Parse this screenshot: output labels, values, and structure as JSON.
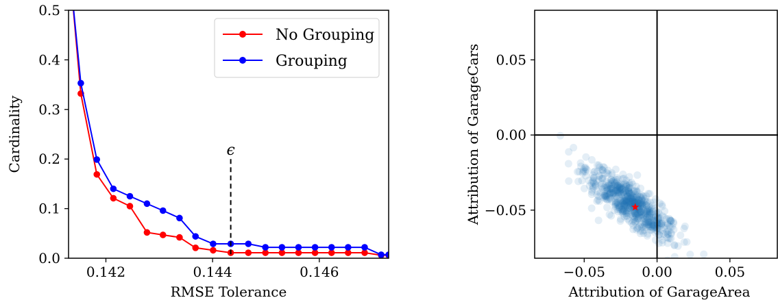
{
  "chart_data": [
    {
      "type": "line",
      "xlabel": "RMSE Tolerance",
      "ylabel": "Cardinality",
      "xlim": [
        0.1413,
        0.1473
      ],
      "ylim": [
        0.0,
        0.5
      ],
      "xticks": [
        0.142,
        0.144,
        0.146
      ],
      "xtick_labels": [
        "0.142",
        "0.144",
        "0.146"
      ],
      "yticks": [
        0.0,
        0.1,
        0.2,
        0.3,
        0.4,
        0.5
      ],
      "ytick_labels": [
        "0.0",
        "0.1",
        "0.2",
        "0.3",
        "0.4",
        "0.5"
      ],
      "grid": false,
      "legend_position": "top-right",
      "series": [
        {
          "name": "No Grouping",
          "color": "#ff0000",
          "x": [
            0.14135,
            0.14153,
            0.14183,
            0.14214,
            0.14245,
            0.14277,
            0.14307,
            0.14338,
            0.14368,
            0.14401,
            0.14434,
            0.14467,
            0.14499,
            0.1453,
            0.14561,
            0.14592,
            0.14623,
            0.14654,
            0.14685,
            0.14716,
            0.1473
          ],
          "y": [
            0.55,
            0.332,
            0.169,
            0.121,
            0.105,
            0.052,
            0.047,
            0.042,
            0.021,
            0.016,
            0.011,
            0.011,
            0.011,
            0.011,
            0.011,
            0.011,
            0.011,
            0.011,
            0.011,
            0.006,
            0.006
          ]
        },
        {
          "name": "Grouping",
          "color": "#0000ff",
          "x": [
            0.14135,
            0.14153,
            0.14183,
            0.14214,
            0.14245,
            0.14277,
            0.14307,
            0.14338,
            0.14368,
            0.14401,
            0.14434,
            0.14467,
            0.14499,
            0.1453,
            0.14561,
            0.14592,
            0.14623,
            0.14654,
            0.14685,
            0.14716,
            0.1473
          ],
          "y": [
            0.55,
            0.353,
            0.199,
            0.14,
            0.125,
            0.11,
            0.096,
            0.081,
            0.044,
            0.029,
            0.029,
            0.029,
            0.022,
            0.022,
            0.022,
            0.022,
            0.022,
            0.022,
            0.022,
            0.007,
            0.007
          ]
        }
      ],
      "annotations": [
        {
          "text": "ϵ",
          "x": 0.14434,
          "y_from": 0.0,
          "y_to": 0.2,
          "style": "dashed"
        }
      ]
    },
    {
      "type": "scatter",
      "xlabel": "Attribution of GarageArea",
      "ylabel": "Attribution of GarageCars",
      "xlim": [
        -0.084,
        0.083
      ],
      "ylim": [
        -0.082,
        0.083
      ],
      "xticks": [
        -0.05,
        0.0,
        0.05
      ],
      "xtick_labels": [
        "−0.05",
        "0.00",
        "0.05"
      ],
      "yticks": [
        -0.05,
        0.0,
        0.05
      ],
      "ytick_labels": [
        "−0.05",
        "0.00",
        "0.05"
      ],
      "grid": false,
      "zero_lines": true,
      "point_color": "#1f77b4",
      "point_opacity": 0.12,
      "cloud": {
        "center": [
          -0.018,
          -0.046
        ],
        "direction": [
          0.58,
          -0.45
        ],
        "major_spread": 0.019,
        "minor_spread": 0.0055,
        "count": 650
      },
      "highlight_point": {
        "x": -0.015,
        "y": -0.048,
        "marker": "star",
        "color": "#ff0000"
      }
    }
  ]
}
